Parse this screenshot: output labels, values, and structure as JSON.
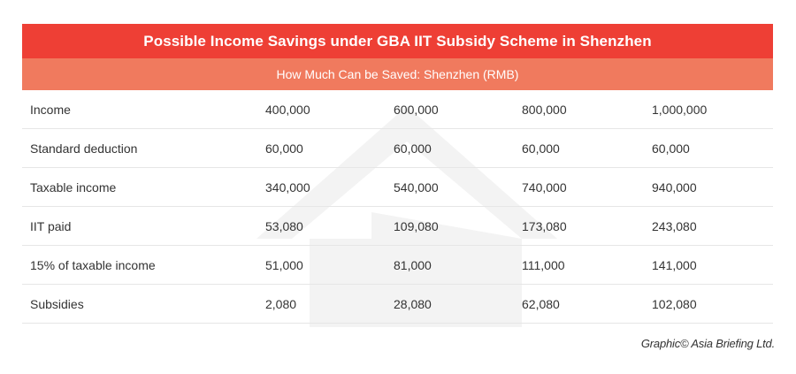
{
  "title": "Possible Income Savings under GBA IIT Subsidy Scheme in Shenzhen",
  "subtitle": "How Much Can be Saved: Shenzhen (RMB)",
  "rows": [
    {
      "label": "Income",
      "values": [
        "400,000",
        "600,000",
        "800,000",
        "1,000,000"
      ]
    },
    {
      "label": "Standard deduction",
      "values": [
        "60,000",
        "60,000",
        "60,000",
        "60,000"
      ]
    },
    {
      "label": "Taxable income",
      "values": [
        "340,000",
        "540,000",
        "740,000",
        "940,000"
      ]
    },
    {
      "label": "IIT paid",
      "values": [
        "53,080",
        "109,080",
        "173,080",
        "243,080"
      ]
    },
    {
      "label": "15% of taxable income",
      "values": [
        "51,000",
        "81,000",
        "111,000",
        "141,000"
      ]
    },
    {
      "label": "Subsidies",
      "values": [
        "2,080",
        "28,080",
        "62,080",
        "102,080"
      ]
    }
  ],
  "credit": "Graphic© Asia Briefing Ltd.",
  "colors": {
    "title_bg": "#ee3f35",
    "subtitle_bg": "#f07a5e",
    "row_border": "#e6e6e6",
    "watermark": "#f2f2f2"
  }
}
